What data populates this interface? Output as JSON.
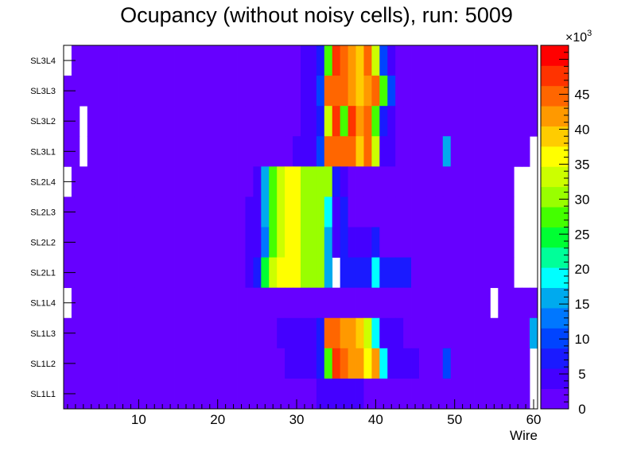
{
  "chart_data": {
    "type": "heatmap",
    "title": "Ocupancy (without noisy cells), run: 5009",
    "xlabel": "Wire",
    "ylabel": "",
    "xlim": [
      0.5,
      60.5
    ],
    "x_ticks": [
      "10",
      "20",
      "30",
      "40",
      "50",
      "60"
    ],
    "x_tick_values": [
      10,
      20,
      30,
      40,
      50,
      60
    ],
    "rows": [
      "SL3L4",
      "SL3L3",
      "SL3L2",
      "SL3L1",
      "SL2L4",
      "SL2L3",
      "SL2L2",
      "SL2L1",
      "SL1L4",
      "SL1L3",
      "SL1L2",
      "SL1L1"
    ],
    "colorbar": {
      "min": 0,
      "max": 52000,
      "exponent_label": "×10",
      "exponent_power": "3",
      "tick_values": [
        0,
        5,
        10,
        15,
        20,
        25,
        30,
        35,
        40,
        45
      ],
      "tick_labels": [
        "0",
        "5",
        "10",
        "15",
        "20",
        "25",
        "30",
        "35",
        "40",
        "45"
      ],
      "palette": [
        "#6600ff",
        "#4400ff",
        "#1a1aff",
        "#0044ff",
        "#0077ff",
        "#00aaee",
        "#00ffff",
        "#00ff99",
        "#00ff33",
        "#44ff00",
        "#99ff00",
        "#ccff00",
        "#ffff00",
        "#ffcc00",
        "#ff9900",
        "#ff6600",
        "#ff3300",
        "#ff0000"
      ]
    },
    "background_value": 1000,
    "empty_cells": [
      {
        "row": "SL3L4",
        "wires": [
          1
        ]
      },
      {
        "row": "SL3L2",
        "wires": [
          3
        ]
      },
      {
        "row": "SL3L1",
        "wires": [
          3,
          60
        ]
      },
      {
        "row": "SL2L4",
        "wires": [
          1,
          58,
          59,
          60
        ]
      },
      {
        "row": "SL2L3",
        "wires": [
          58,
          59,
          60
        ]
      },
      {
        "row": "SL2L2",
        "wires": [
          58,
          59,
          60
        ]
      },
      {
        "row": "SL2L1",
        "wires": [
          35,
          58,
          59,
          60
        ]
      },
      {
        "row": "SL1L4",
        "wires": [
          1,
          55
        ]
      },
      {
        "row": "SL1L2",
        "wires": [
          60
        ]
      },
      {
        "row": "SL1L1",
        "wires": [
          60
        ]
      }
    ],
    "cells": [
      {
        "row": "SL3L4",
        "start_wire": 31,
        "values": [
          4000,
          4000,
          8000,
          28000,
          49000,
          45000,
          41000,
          40000,
          45000,
          33000,
          10000,
          4000
        ]
      },
      {
        "row": "SL3L3",
        "start_wire": 31,
        "values": [
          3000,
          3000,
          10000,
          46000,
          46000,
          45000,
          43000,
          38000,
          41000,
          45000,
          28000,
          10000
        ]
      },
      {
        "row": "SL3L2",
        "start_wire": 31,
        "values": [
          3000,
          3000,
          6000,
          33000,
          49000,
          28000,
          47000,
          41000,
          46000,
          28000,
          8000,
          3000
        ]
      },
      {
        "row": "SL3L1",
        "start_wire": 30,
        "values": [
          3000,
          3000,
          3000,
          10000,
          46000,
          46000,
          46000,
          44000,
          40000,
          44000,
          33000,
          3000,
          3000
        ]
      },
      {
        "row": "SL1L3",
        "start_wire": 28,
        "values": [
          3000,
          3000,
          3000,
          3000,
          3000,
          8000,
          46000,
          46000,
          43000,
          43000,
          38000,
          33000,
          20000,
          4000,
          4000,
          4000
        ]
      },
      {
        "row": "SL1L2",
        "start_wire": 29,
        "values": [
          3000,
          3000,
          3000,
          3000,
          8000,
          28000,
          49000,
          46000,
          43000,
          43000,
          35000,
          43000,
          20000,
          4000,
          4000,
          4000,
          4000
        ]
      },
      {
        "row": "SL1L1",
        "start_wire": 33,
        "values": [
          3000,
          3000,
          3000,
          3000,
          3000,
          3000
        ]
      },
      {
        "row": "SL2L4",
        "start_wire": 25,
        "values": [
          4000,
          17000,
          27000,
          33000,
          37000,
          37000,
          30000,
          30000,
          30000,
          30000,
          8000,
          4000
        ]
      },
      {
        "row": "SL2L3",
        "start_wire": 24,
        "values": [
          4000,
          4000,
          15000,
          27000,
          33000,
          37000,
          37000,
          30000,
          30000,
          30000,
          20000,
          4000,
          8000
        ]
      },
      {
        "row": "SL2L2",
        "start_wire": 24,
        "values": [
          4000,
          4000,
          12000,
          27000,
          33000,
          37000,
          37000,
          30000,
          30000,
          30000,
          15000,
          4000,
          8000,
          4000,
          4000,
          4000,
          8000
        ]
      },
      {
        "row": "SL2L1",
        "start_wire": 24,
        "values": [
          4000,
          8000,
          25000,
          33000,
          37000,
          37000,
          37000,
          30000,
          30000,
          30000,
          15000,
          null,
          8000,
          8000,
          8000,
          8000,
          20000,
          8000,
          8000,
          8000,
          8000
        ]
      },
      {
        "row": "SL3L1",
        "start_wire": 49,
        "values": [
          17000
        ]
      },
      {
        "row": "SL1L2",
        "start_wire": 49,
        "values": [
          10000
        ]
      },
      {
        "row": "SL1L3",
        "start_wire": 60,
        "values": [
          17000
        ]
      }
    ]
  }
}
